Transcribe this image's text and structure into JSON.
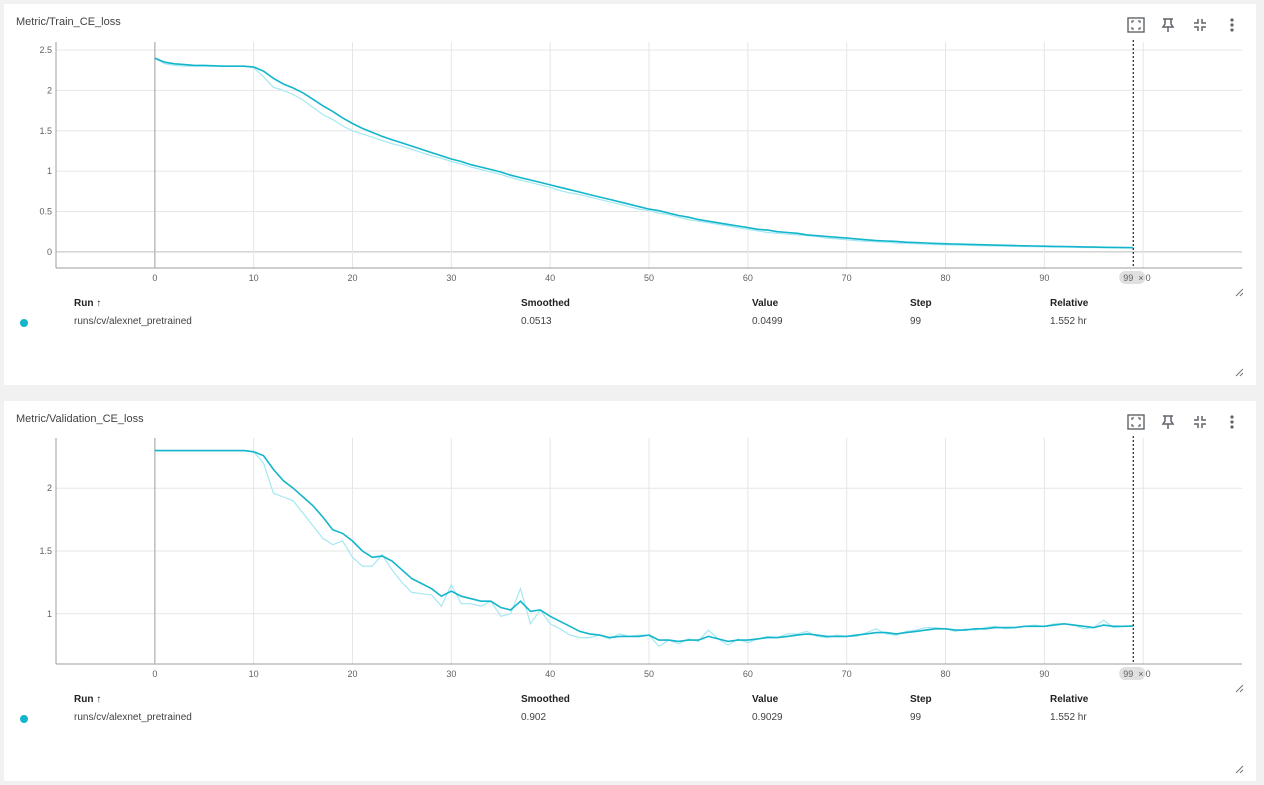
{
  "panels": [
    {
      "title": "Metric/Train_CE_loss",
      "legend": {
        "headers": {
          "run": "Run ↑",
          "smoothed": "Smoothed",
          "value": "Value",
          "step": "Step",
          "relative": "Relative"
        },
        "rows": [
          {
            "run": "runs/cv/alexnet_pretrained",
            "smoothed": "0.0513",
            "value": "0.0499",
            "step": "99",
            "relative": "1.552 hr"
          }
        ]
      },
      "step_badge": "99",
      "chart_data": {
        "type": "line",
        "title": "Metric/Train_CE_loss",
        "xlabel": "",
        "ylabel": "",
        "x_ticks": [
          0,
          10,
          20,
          30,
          40,
          50,
          60,
          70,
          80,
          90,
          100
        ],
        "y_ticks": [
          0,
          0.5,
          1,
          1.5,
          2,
          2.5
        ],
        "x_tick_labels": [
          "0",
          "10",
          "20",
          "30",
          "40",
          "50",
          "60",
          "70",
          "80",
          "90",
          "100"
        ],
        "y_tick_labels": [
          "0",
          "0.5",
          "1",
          "1.5",
          "2",
          "2.5"
        ],
        "xlim": [
          -10,
          110
        ],
        "ylim": [
          -0.2,
          2.6
        ],
        "grid": true,
        "series": [
          {
            "role": "raw",
            "color": "#a5e8f2",
            "x": [
              0,
              1,
              2,
              3,
              4,
              5,
              6,
              7,
              8,
              9,
              10,
              11,
              12,
              13,
              14,
              15,
              16,
              17,
              18,
              19,
              20,
              21,
              22,
              23,
              24,
              25,
              26,
              27,
              28,
              29,
              30,
              31,
              32,
              33,
              34,
              35,
              36,
              37,
              38,
              39,
              40,
              41,
              42,
              43,
              44,
              45,
              46,
              47,
              48,
              49,
              50,
              51,
              52,
              53,
              54,
              55,
              56,
              57,
              58,
              59,
              60,
              61,
              62,
              63,
              64,
              65,
              66,
              67,
              68,
              69,
              70,
              71,
              72,
              73,
              74,
              75,
              76,
              77,
              78,
              79,
              80,
              81,
              82,
              83,
              84,
              85,
              86,
              87,
              88,
              89,
              90,
              91,
              92,
              93,
              94,
              95,
              96,
              97,
              98,
              99
            ],
            "y": [
              2.4,
              2.33,
              2.31,
              2.3,
              2.3,
              2.3,
              2.3,
              2.3,
              2.3,
              2.3,
              2.28,
              2.17,
              2.04,
              2.0,
              1.95,
              1.88,
              1.79,
              1.7,
              1.64,
              1.56,
              1.5,
              1.46,
              1.42,
              1.38,
              1.34,
              1.31,
              1.27,
              1.23,
              1.19,
              1.16,
              1.12,
              1.09,
              1.05,
              1.02,
              0.99,
              0.96,
              0.92,
              0.89,
              0.86,
              0.83,
              0.8,
              0.76,
              0.73,
              0.71,
              0.68,
              0.65,
              0.62,
              0.59,
              0.56,
              0.53,
              0.51,
              0.48,
              0.46,
              0.43,
              0.4,
              0.38,
              0.36,
              0.34,
              0.32,
              0.3,
              0.28,
              0.26,
              0.24,
              0.23,
              0.22,
              0.21,
              0.2,
              0.19,
              0.17,
              0.16,
              0.15,
              0.14,
              0.13,
              0.125,
              0.12,
              0.11,
              0.105,
              0.1,
              0.095,
              0.09,
              0.087,
              0.084,
              0.081,
              0.078,
              0.075,
              0.072,
              0.07,
              0.068,
              0.066,
              0.064,
              0.062,
              0.06,
              0.058,
              0.056,
              0.054,
              0.052,
              0.051,
              0.05,
              0.05,
              0.0499
            ]
          },
          {
            "role": "smoothed",
            "color": "#12b5cb",
            "x": [
              0,
              1,
              2,
              3,
              4,
              5,
              6,
              7,
              8,
              9,
              10,
              11,
              12,
              13,
              14,
              15,
              16,
              17,
              18,
              19,
              20,
              21,
              22,
              23,
              24,
              25,
              26,
              27,
              28,
              29,
              30,
              31,
              32,
              33,
              34,
              35,
              36,
              37,
              38,
              39,
              40,
              41,
              42,
              43,
              44,
              45,
              46,
              47,
              48,
              49,
              50,
              51,
              52,
              53,
              54,
              55,
              56,
              57,
              58,
              59,
              60,
              61,
              62,
              63,
              64,
              65,
              66,
              67,
              68,
              69,
              70,
              71,
              72,
              73,
              74,
              75,
              76,
              77,
              78,
              79,
              80,
              81,
              82,
              83,
              84,
              85,
              86,
              87,
              88,
              89,
              90,
              91,
              92,
              93,
              94,
              95,
              96,
              97,
              98,
              99
            ],
            "y": [
              2.4,
              2.35,
              2.33,
              2.32,
              2.31,
              2.31,
              2.305,
              2.3,
              2.3,
              2.3,
              2.29,
              2.24,
              2.15,
              2.08,
              2.03,
              1.97,
              1.89,
              1.81,
              1.74,
              1.66,
              1.59,
              1.53,
              1.48,
              1.43,
              1.39,
              1.35,
              1.31,
              1.27,
              1.23,
              1.19,
              1.15,
              1.12,
              1.08,
              1.05,
              1.02,
              0.99,
              0.95,
              0.92,
              0.89,
              0.86,
              0.83,
              0.8,
              0.77,
              0.74,
              0.71,
              0.68,
              0.65,
              0.62,
              0.59,
              0.56,
              0.53,
              0.51,
              0.48,
              0.45,
              0.43,
              0.4,
              0.38,
              0.36,
              0.34,
              0.32,
              0.3,
              0.28,
              0.27,
              0.25,
              0.24,
              0.23,
              0.21,
              0.2,
              0.19,
              0.18,
              0.17,
              0.16,
              0.15,
              0.14,
              0.135,
              0.13,
              0.12,
              0.115,
              0.11,
              0.105,
              0.1,
              0.097,
              0.094,
              0.09,
              0.087,
              0.084,
              0.081,
              0.078,
              0.075,
              0.072,
              0.07,
              0.068,
              0.066,
              0.064,
              0.061,
              0.059,
              0.057,
              0.055,
              0.053,
              0.0513
            ]
          }
        ]
      }
    },
    {
      "title": "Metric/Validation_CE_loss",
      "legend": {
        "headers": {
          "run": "Run ↑",
          "smoothed": "Smoothed",
          "value": "Value",
          "step": "Step",
          "relative": "Relative"
        },
        "rows": [
          {
            "run": "runs/cv/alexnet_pretrained",
            "smoothed": "0.902",
            "value": "0.9029",
            "step": "99",
            "relative": "1.552 hr"
          }
        ]
      },
      "step_badge": "99",
      "chart_data": {
        "type": "line",
        "title": "Metric/Validation_CE_loss",
        "xlabel": "",
        "ylabel": "",
        "x_ticks": [
          0,
          10,
          20,
          30,
          40,
          50,
          60,
          70,
          80,
          90,
          100
        ],
        "y_ticks": [
          1,
          1.5,
          2
        ],
        "x_tick_labels": [
          "0",
          "10",
          "20",
          "30",
          "40",
          "50",
          "60",
          "70",
          "80",
          "90",
          "100"
        ],
        "y_tick_labels": [
          "1",
          "1.5",
          "2"
        ],
        "xlim": [
          -10,
          110
        ],
        "ylim": [
          0.6,
          2.4
        ],
        "grid": true,
        "series": [
          {
            "role": "raw",
            "color": "#a5e8f2",
            "x": [
              0,
              1,
              2,
              3,
              4,
              5,
              6,
              7,
              8,
              9,
              10,
              11,
              12,
              13,
              14,
              15,
              16,
              17,
              18,
              19,
              20,
              21,
              22,
              23,
              24,
              25,
              26,
              27,
              28,
              29,
              30,
              31,
              32,
              33,
              34,
              35,
              36,
              37,
              38,
              39,
              40,
              41,
              42,
              43,
              44,
              45,
              46,
              47,
              48,
              49,
              50,
              51,
              52,
              53,
              54,
              55,
              56,
              57,
              58,
              59,
              60,
              61,
              62,
              63,
              64,
              65,
              66,
              67,
              68,
              69,
              70,
              71,
              72,
              73,
              74,
              75,
              76,
              77,
              78,
              79,
              80,
              81,
              82,
              83,
              84,
              85,
              86,
              87,
              88,
              89,
              90,
              91,
              92,
              93,
              94,
              95,
              96,
              97,
              98,
              99
            ],
            "y": [
              2.3,
              2.3,
              2.3,
              2.3,
              2.3,
              2.3,
              2.3,
              2.3,
              2.3,
              2.3,
              2.29,
              2.2,
              1.96,
              1.93,
              1.9,
              1.8,
              1.7,
              1.6,
              1.55,
              1.58,
              1.45,
              1.38,
              1.38,
              1.47,
              1.35,
              1.25,
              1.17,
              1.16,
              1.15,
              1.06,
              1.23,
              1.08,
              1.08,
              1.06,
              1.1,
              0.98,
              1.0,
              1.2,
              0.92,
              1.03,
              0.92,
              0.88,
              0.83,
              0.81,
              0.81,
              0.83,
              0.8,
              0.84,
              0.82,
              0.83,
              0.83,
              0.74,
              0.79,
              0.76,
              0.8,
              0.78,
              0.87,
              0.8,
              0.75,
              0.8,
              0.77,
              0.8,
              0.82,
              0.81,
              0.84,
              0.84,
              0.86,
              0.82,
              0.81,
              0.83,
              0.82,
              0.82,
              0.85,
              0.88,
              0.84,
              0.83,
              0.86,
              0.87,
              0.89,
              0.89,
              0.88,
              0.86,
              0.88,
              0.87,
              0.89,
              0.9,
              0.88,
              0.89,
              0.9,
              0.91,
              0.9,
              0.92,
              0.92,
              0.91,
              0.88,
              0.89,
              0.95,
              0.89,
              0.9,
              0.9029
            ]
          },
          {
            "role": "smoothed",
            "color": "#12b5cb",
            "x": [
              0,
              1,
              2,
              3,
              4,
              5,
              6,
              7,
              8,
              9,
              10,
              11,
              12,
              13,
              14,
              15,
              16,
              17,
              18,
              19,
              20,
              21,
              22,
              23,
              24,
              25,
              26,
              27,
              28,
              29,
              30,
              31,
              32,
              33,
              34,
              35,
              36,
              37,
              38,
              39,
              40,
              41,
              42,
              43,
              44,
              45,
              46,
              47,
              48,
              49,
              50,
              51,
              52,
              53,
              54,
              55,
              56,
              57,
              58,
              59,
              60,
              61,
              62,
              63,
              64,
              65,
              66,
              67,
              68,
              69,
              70,
              71,
              72,
              73,
              74,
              75,
              76,
              77,
              78,
              79,
              80,
              81,
              82,
              83,
              84,
              85,
              86,
              87,
              88,
              89,
              90,
              91,
              92,
              93,
              94,
              95,
              96,
              97,
              98,
              99
            ],
            "y": [
              2.3,
              2.3,
              2.3,
              2.3,
              2.3,
              2.3,
              2.3,
              2.3,
              2.3,
              2.3,
              2.29,
              2.26,
              2.15,
              2.06,
              2.0,
              1.93,
              1.86,
              1.77,
              1.67,
              1.64,
              1.58,
              1.5,
              1.45,
              1.46,
              1.42,
              1.35,
              1.28,
              1.24,
              1.2,
              1.14,
              1.18,
              1.14,
              1.12,
              1.1,
              1.1,
              1.05,
              1.03,
              1.1,
              1.02,
              1.03,
              0.98,
              0.94,
              0.9,
              0.86,
              0.84,
              0.83,
              0.81,
              0.82,
              0.82,
              0.82,
              0.83,
              0.79,
              0.79,
              0.78,
              0.79,
              0.79,
              0.82,
              0.8,
              0.78,
              0.79,
              0.79,
              0.8,
              0.81,
              0.81,
              0.82,
              0.83,
              0.84,
              0.83,
              0.82,
              0.82,
              0.82,
              0.83,
              0.84,
              0.85,
              0.85,
              0.84,
              0.85,
              0.86,
              0.87,
              0.88,
              0.88,
              0.87,
              0.87,
              0.88,
              0.88,
              0.89,
              0.89,
              0.89,
              0.9,
              0.9,
              0.9,
              0.91,
              0.92,
              0.91,
              0.9,
              0.89,
              0.91,
              0.9,
              0.9,
              0.902
            ]
          }
        ]
      }
    }
  ]
}
